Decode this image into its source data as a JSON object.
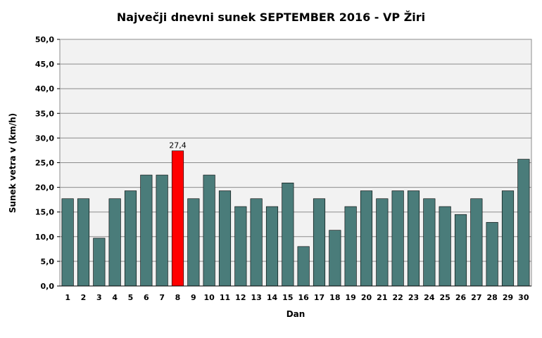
{
  "chart_data": {
    "type": "bar",
    "title": "Največji dnevni sunek SEPTEMBER  2016 - VP Žiri",
    "xlabel": "Dan",
    "ylabel": "Sunek vetra  v (km/h)",
    "ylim": [
      0,
      50
    ],
    "ytick_step": 5,
    "ytick_labels": [
      "0,0",
      "5,0",
      "10,0",
      "15,0",
      "20,0",
      "25,0",
      "30,0",
      "35,0",
      "40,0",
      "45,0",
      "50,0"
    ],
    "grid": true,
    "categories": [
      "1",
      "2",
      "3",
      "4",
      "5",
      "6",
      "7",
      "8",
      "9",
      "10",
      "11",
      "12",
      "13",
      "14",
      "15",
      "16",
      "17",
      "18",
      "19",
      "20",
      "21",
      "22",
      "23",
      "24",
      "25",
      "26",
      "27",
      "28",
      "29",
      "30"
    ],
    "values": [
      17.7,
      17.7,
      9.7,
      17.7,
      19.3,
      22.5,
      22.5,
      27.4,
      17.7,
      22.5,
      19.3,
      16.1,
      17.7,
      16.1,
      20.9,
      8.0,
      17.7,
      11.3,
      16.1,
      19.3,
      17.7,
      19.3,
      19.3,
      17.7,
      16.1,
      14.5,
      17.7,
      12.9,
      19.3,
      25.7
    ],
    "highlight_index": 7,
    "data_labels": [
      {
        "index": 7,
        "text": "27,4"
      }
    ],
    "colors": {
      "bar": "#4a7c7a",
      "highlight": "#ff0000",
      "plot_background": "#f2f2f2",
      "gridline": "#8c8c8c"
    }
  }
}
